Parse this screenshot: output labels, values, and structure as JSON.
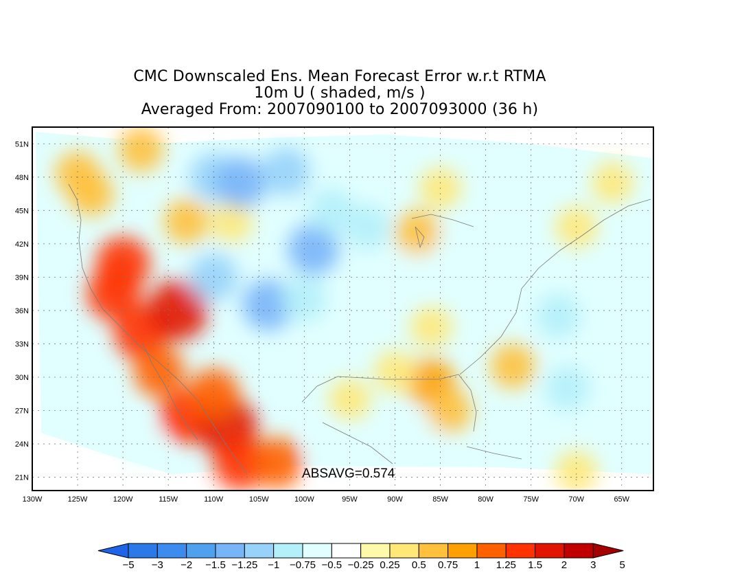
{
  "title": {
    "line1": "CMC Downscaled Ens. Mean Forecast Error w.r.t RTMA",
    "line2": "10m U ( shaded, m/s )",
    "line3": "Averaged From: 2007090100 to 2007093000 (36 h)"
  },
  "map": {
    "lon_labels": [
      "130W",
      "125W",
      "120W",
      "115W",
      "110W",
      "105W",
      "100W",
      "95W",
      "90W",
      "85W",
      "80W",
      "75W",
      "70W",
      "65W"
    ],
    "lat_labels": [
      "21N",
      "24N",
      "27N",
      "30N",
      "33N",
      "36N",
      "39N",
      "42N",
      "45N",
      "48N",
      "51N"
    ],
    "lon_range": [
      -130,
      -61.5
    ],
    "lat_range": [
      19.8,
      52.5
    ],
    "grid": "dotted",
    "absavg_text": "ABSAVG=0.574"
  },
  "colorbar": {
    "labels": [
      "-5",
      "-3",
      "-2",
      "-1.5",
      "-1.25",
      "-1",
      "-0.75",
      "-0.5",
      "-0.25",
      "0.25",
      "0.5",
      "0.75",
      "1",
      "1.25",
      "1.5",
      "2",
      "3",
      "5"
    ],
    "colors": [
      "#1e64e6",
      "#2b78e8",
      "#3c8cf0",
      "#50a0f0",
      "#78b4f8",
      "#96d2fa",
      "#b4f0fa",
      "#e1ffff",
      "#ffffff",
      "#fffaaa",
      "#ffe878",
      "#ffc03c",
      "#ffa000",
      "#ff6000",
      "#ff3200",
      "#e11400",
      "#c00000",
      "#a50000"
    ],
    "extend_low": "#1e64e6",
    "extend_high": "#a50000"
  },
  "field_blobs": [
    {
      "lon": -121,
      "lat": 37.5,
      "value": 1.5
    },
    {
      "lon": -120,
      "lat": 40.2,
      "value": 1.5
    },
    {
      "lon": -118,
      "lat": 34.0,
      "value": 1.5
    },
    {
      "lon": -114,
      "lat": 36.0,
      "value": 2
    },
    {
      "lon": -113,
      "lat": 26.5,
      "value": 1.5
    },
    {
      "lon": -108.5,
      "lat": 25.5,
      "value": 2
    },
    {
      "lon": -110,
      "lat": 28.5,
      "value": 1.25
    },
    {
      "lon": -107,
      "lat": 22.3,
      "value": 1.5
    },
    {
      "lon": -103,
      "lat": 22.3,
      "value": 1.25
    },
    {
      "lon": -116,
      "lat": 30.5,
      "value": 1.25
    },
    {
      "lon": -123.5,
      "lat": 46.5,
      "value": 0.75
    },
    {
      "lon": -125,
      "lat": 48.3,
      "value": 0.75
    },
    {
      "lon": -118,
      "lat": 50.5,
      "value": 0.75
    },
    {
      "lon": -113,
      "lat": 44.0,
      "value": 0.75
    },
    {
      "lon": -108,
      "lat": 44.0,
      "value": 0.5
    },
    {
      "lon": -110,
      "lat": 48.0,
      "value": -1
    },
    {
      "lon": -107,
      "lat": 47.5,
      "value": -1.25
    },
    {
      "lon": -102,
      "lat": 48.5,
      "value": -1
    },
    {
      "lon": -99,
      "lat": 41.5,
      "value": -1.25
    },
    {
      "lon": -104,
      "lat": 36.5,
      "value": -1.25
    },
    {
      "lon": -110,
      "lat": 39.0,
      "value": -1
    },
    {
      "lon": -97,
      "lat": 45.0,
      "value": -0.75
    },
    {
      "lon": -93,
      "lat": 43.5,
      "value": -0.75
    },
    {
      "lon": -100,
      "lat": 37.0,
      "value": -0.75
    },
    {
      "lon": -85,
      "lat": 42.0,
      "value": -0.5
    },
    {
      "lon": -78,
      "lat": 43.0,
      "value": -0.5
    },
    {
      "lon": -88,
      "lat": 39.5,
      "value": -0.5
    },
    {
      "lon": -72,
      "lat": 35.5,
      "value": -0.75
    },
    {
      "lon": -71,
      "lat": 29.0,
      "value": -0.75
    },
    {
      "lon": -97,
      "lat": 23.5,
      "value": -0.5
    },
    {
      "lon": -87,
      "lat": 25.0,
      "value": -0.5
    },
    {
      "lon": -118,
      "lat": 24.0,
      "value": -0.5
    },
    {
      "lon": -86,
      "lat": 29.5,
      "value": 1
    },
    {
      "lon": -84,
      "lat": 27.0,
      "value": 0.75
    },
    {
      "lon": -86,
      "lat": 34.5,
      "value": 0.5
    },
    {
      "lon": -90,
      "lat": 30.5,
      "value": 0.5
    },
    {
      "lon": -77,
      "lat": 31.0,
      "value": 0.75
    },
    {
      "lon": -95,
      "lat": 28.0,
      "value": 0.5
    },
    {
      "lon": -87.5,
      "lat": 43.0,
      "value": 0.75
    },
    {
      "lon": -85,
      "lat": 47.0,
      "value": 0.5
    },
    {
      "lon": -70,
      "lat": 43.5,
      "value": 0.5
    },
    {
      "lon": -66,
      "lat": 47.5,
      "value": 0.5
    },
    {
      "lon": -70,
      "lat": 21.5,
      "value": 0.5
    }
  ]
}
